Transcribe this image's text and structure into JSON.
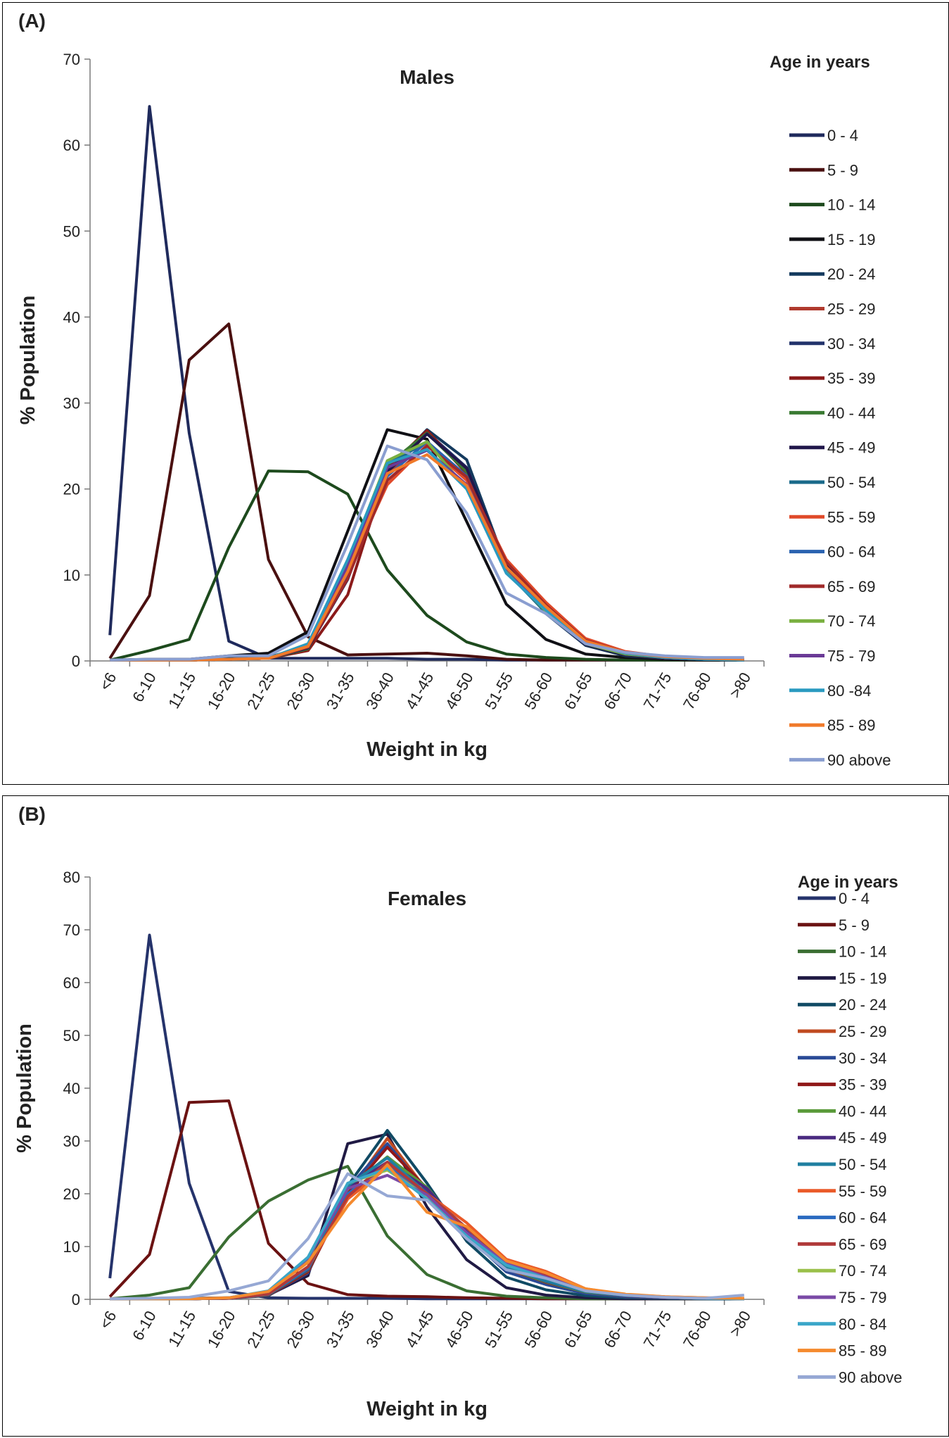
{
  "panels": [
    {
      "panel_label": "(A)",
      "chart_data": {
        "type": "line",
        "title": "Males",
        "xlabel": "Weight in kg",
        "ylabel": "% Population",
        "ylim": [
          0,
          70
        ],
        "yticks": [
          0,
          10,
          20,
          30,
          40,
          50,
          60,
          70
        ],
        "categories": [
          "<6",
          "6-10",
          "11-15",
          "16-20",
          "21-25",
          "26-30",
          "31-35",
          "36-40",
          "41-45",
          "46-50",
          "51-55",
          "56-60",
          "61-65",
          "66-70",
          "71-75",
          "76-80",
          ">80"
        ],
        "legend_title": "Age in years",
        "series": [
          {
            "name": "0 - 4",
            "color": "#1f2a5c",
            "values": [
              3,
              64.5,
              26.5,
              2.3,
              0.3,
              0.3,
              0.3,
              0.3,
              0.2,
              0.2,
              0.1,
              0.1,
              0.1,
              0.1,
              0.1,
              0.1,
              0.1
            ]
          },
          {
            "name": "5 - 9",
            "color": "#4a1010",
            "values": [
              0.3,
              7.6,
              35,
              39.2,
              11.8,
              2.8,
              0.7,
              0.8,
              0.9,
              0.6,
              0.2,
              0.1,
              0.1,
              0.1,
              0.1,
              0.1,
              0.1
            ]
          },
          {
            "name": "10 - 14",
            "color": "#1d4a1d",
            "values": [
              0.1,
              1.2,
              2.5,
              13.2,
              22.1,
              22,
              19.4,
              10.6,
              5.3,
              2.2,
              0.8,
              0.4,
              0.2,
              0.1,
              0.1,
              0.1,
              0.1
            ]
          },
          {
            "name": "15 - 19",
            "color": "#101015",
            "values": [
              0.1,
              0.2,
              0.2,
              0.6,
              0.9,
              3.4,
              15.1,
              26.9,
              25.8,
              16.2,
              6.6,
              2.5,
              0.8,
              0.4,
              0.2,
              0.1,
              0.1
            ]
          },
          {
            "name": "20 - 24",
            "color": "#143a5e",
            "values": [
              0.1,
              0.1,
              0.1,
              0.3,
              0.4,
              1.8,
              11.5,
              22.1,
              26.9,
              23.4,
              11,
              5.5,
              1.8,
              0.6,
              0.3,
              0.2,
              0.1
            ]
          },
          {
            "name": "25 - 29",
            "color": "#b03a2e",
            "values": [
              0.1,
              0.1,
              0.1,
              0.2,
              0.3,
              1.6,
              10.5,
              21.5,
              26.5,
              22.1,
              11.2,
              6,
              2,
              0.8,
              0.3,
              0.2,
              0.1
            ]
          },
          {
            "name": "30 - 34",
            "color": "#22336b",
            "values": [
              0.1,
              0.1,
              0.1,
              0.2,
              0.3,
              1.5,
              9.8,
              22,
              26.6,
              22.5,
              11,
              5.6,
              1.9,
              0.8,
              0.3,
              0.2,
              0.1
            ]
          },
          {
            "name": "35 - 39",
            "color": "#8b1a1a",
            "values": [
              0.1,
              0.1,
              0.1,
              0.2,
              0.3,
              1.2,
              7.7,
              22.4,
              26.8,
              21.8,
              11.1,
              5.8,
              2,
              0.7,
              0.3,
              0.2,
              0.1
            ]
          },
          {
            "name": "40 - 44",
            "color": "#3a7a32",
            "values": [
              0.1,
              0.1,
              0.1,
              0.2,
              0.3,
              1.4,
              10,
              22.8,
              26.5,
              22,
              10.8,
              5.7,
              1.9,
              0.7,
              0.3,
              0.2,
              0.1
            ]
          },
          {
            "name": "45 - 49",
            "color": "#20164a",
            "values": [
              0.1,
              0.1,
              0.1,
              0.2,
              0.3,
              1.5,
              9.5,
              22,
              26.4,
              22.4,
              11.1,
              5.6,
              1.9,
              0.7,
              0.3,
              0.2,
              0.1
            ]
          },
          {
            "name": "50 - 54",
            "color": "#1a6a8a",
            "values": [
              0.1,
              0.1,
              0.1,
              0.2,
              0.3,
              1.7,
              11,
              23,
              25.4,
              21.2,
              10.4,
              5.6,
              2,
              0.8,
              0.4,
              0.2,
              0.1
            ]
          },
          {
            "name": "55 - 59",
            "color": "#e04a2a",
            "values": [
              0.1,
              0.1,
              0.1,
              0.2,
              0.3,
              1.8,
              10.5,
              20.5,
              25.1,
              21,
              11.8,
              6.8,
              2.6,
              1.1,
              0.5,
              0.3,
              0.2
            ]
          },
          {
            "name": "60 - 64",
            "color": "#2a62b0",
            "values": [
              0.1,
              0.1,
              0.1,
              0.2,
              0.3,
              1.6,
              10.2,
              21.5,
              25.5,
              21.5,
              10.8,
              6.2,
              2.2,
              0.9,
              0.4,
              0.2,
              0.1
            ]
          },
          {
            "name": "65 - 69",
            "color": "#a02a2a",
            "values": [
              0.1,
              0.1,
              0.1,
              0.2,
              0.3,
              1.6,
              9.6,
              21,
              25,
              21.4,
              11.5,
              6.5,
              2.4,
              1,
              0.4,
              0.2,
              0.1
            ]
          },
          {
            "name": "70 - 74",
            "color": "#7ab040",
            "values": [
              0.1,
              0.1,
              0.1,
              0.2,
              0.3,
              2,
              11.5,
              23.3,
              25.5,
              20,
              10.4,
              5.8,
              2,
              0.8,
              0.4,
              0.2,
              0.1
            ]
          },
          {
            "name": "75 - 79",
            "color": "#6a3a96",
            "values": [
              0.1,
              0.1,
              0.1,
              0.2,
              0.3,
              1.9,
              11,
              22.5,
              24.5,
              20.5,
              10.8,
              6,
              2.2,
              0.9,
              0.4,
              0.2,
              0.1
            ]
          },
          {
            "name": "80 -84",
            "color": "#2a9ac0",
            "values": [
              0.1,
              0.1,
              0.1,
              0.2,
              0.3,
              2,
              11.8,
              23,
              24.6,
              20,
              10.2,
              5.9,
              2.2,
              0.9,
              0.4,
              0.2,
              0.1
            ]
          },
          {
            "name": "85 - 89",
            "color": "#f07a2a",
            "values": [
              0.1,
              0.1,
              0.1,
              0.2,
              0.3,
              1.7,
              10.4,
              21.8,
              24,
              20.4,
              10.9,
              6.3,
              2.3,
              1,
              0.5,
              0.3,
              0.2
            ]
          },
          {
            "name": "90 above",
            "color": "#8a9ed0",
            "values": [
              0.1,
              0.2,
              0.2,
              0.6,
              0.6,
              3,
              13.6,
              25,
              23.4,
              17.2,
              7.9,
              5.5,
              2,
              1,
              0.6,
              0.4,
              0.4
            ]
          }
        ]
      }
    },
    {
      "panel_label": "(B)",
      "chart_data": {
        "type": "line",
        "title": "Females",
        "xlabel": "Weight in kg",
        "ylabel": "% Population",
        "ylim": [
          0,
          80
        ],
        "yticks": [
          0,
          10,
          20,
          30,
          40,
          50,
          60,
          70,
          80
        ],
        "categories": [
          "<6",
          "6-10",
          "11-15",
          "16-20",
          "21-25",
          "26-30",
          "31-35",
          "36-40",
          "41-45",
          "46-50",
          "51-55",
          "56-60",
          "61-65",
          "66-70",
          "71-75",
          "76-80",
          ">80"
        ],
        "legend_title": "Age in years",
        "series": [
          {
            "name": "0 - 4",
            "color": "#25336b",
            "values": [
              4,
              69,
              22,
              1.5,
              0.3,
              0.2,
              0.2,
              0.2,
              0.1,
              0.1,
              0.1,
              0.1,
              0.1,
              0.1,
              0.1,
              0.1,
              0.1
            ]
          },
          {
            "name": "5 - 9",
            "color": "#6b1212",
            "values": [
              0.5,
              8.5,
              37.3,
              37.6,
              10.6,
              3,
              0.9,
              0.6,
              0.5,
              0.3,
              0.2,
              0.1,
              0.1,
              0.1,
              0.1,
              0.1,
              0.1
            ]
          },
          {
            "name": "10 - 14",
            "color": "#3a6e32",
            "values": [
              0.1,
              0.8,
              2.2,
              11.8,
              18.6,
              22.6,
              25.2,
              12,
              4.7,
              1.6,
              0.6,
              0.3,
              0.1,
              0.1,
              0.1,
              0.1,
              0.1
            ]
          },
          {
            "name": "15 - 19",
            "color": "#201a44",
            "values": [
              0.1,
              0.1,
              0.2,
              0.3,
              0.8,
              4.5,
              29.5,
              31.3,
              17.5,
              7.5,
              2.2,
              0.8,
              0.3,
              0.1,
              0.1,
              0.1,
              0.1
            ]
          },
          {
            "name": "20 - 24",
            "color": "#104a64",
            "values": [
              0.1,
              0.1,
              0.1,
              0.2,
              0.7,
              5.3,
              21.5,
              32,
              22,
              11,
              4.2,
              1.8,
              0.7,
              0.3,
              0.2,
              0.1,
              0.1
            ]
          },
          {
            "name": "25 - 29",
            "color": "#c04a20",
            "values": [
              0.1,
              0.1,
              0.1,
              0.2,
              0.8,
              5.5,
              20,
              30.5,
              20.6,
              12.5,
              5.6,
              3,
              1.2,
              0.5,
              0.3,
              0.2,
              0.1
            ]
          },
          {
            "name": "30 - 34",
            "color": "#2a4a96",
            "values": [
              0.1,
              0.1,
              0.1,
              0.2,
              0.8,
              5,
              21,
              29.5,
              20.5,
              12,
              5.2,
              2.8,
              1.1,
              0.5,
              0.3,
              0.2,
              0.1
            ]
          },
          {
            "name": "35 - 39",
            "color": "#901818",
            "values": [
              0.1,
              0.1,
              0.1,
              0.2,
              0.8,
              5.2,
              20,
              28.8,
              21,
              12.5,
              6,
              3.2,
              1.4,
              0.6,
              0.3,
              0.2,
              0.1
            ]
          },
          {
            "name": "40 - 44",
            "color": "#5a9a3a",
            "values": [
              0.1,
              0.1,
              0.1,
              0.2,
              0.9,
              5.5,
              21,
              27,
              21.2,
              12.5,
              6,
              3.3,
              1.4,
              0.6,
              0.3,
              0.2,
              0.1
            ]
          },
          {
            "name": "45 - 49",
            "color": "#4a2a80",
            "values": [
              0.1,
              0.1,
              0.1,
              0.2,
              0.9,
              5.6,
              21.2,
              26,
              21,
              12.8,
              6.2,
              3.4,
              1.5,
              0.6,
              0.3,
              0.2,
              0.1
            ]
          },
          {
            "name": "50 - 54",
            "color": "#1f7fa0",
            "values": [
              0.1,
              0.1,
              0.1,
              0.2,
              0.9,
              5.8,
              21.5,
              26.8,
              20,
              12.5,
              6,
              3.5,
              1.5,
              0.7,
              0.4,
              0.2,
              0.1
            ]
          },
          {
            "name": "55 - 59",
            "color": "#ea5a28",
            "values": [
              0.1,
              0.1,
              0.1,
              0.2,
              1,
              6,
              19,
              25,
              20,
              14.5,
              7.6,
              5.3,
              2,
              0.9,
              0.5,
              0.3,
              0.2
            ]
          },
          {
            "name": "60 - 64",
            "color": "#2a6ac0",
            "values": [
              0.1,
              0.1,
              0.1,
              0.2,
              1,
              6,
              20,
              25.5,
              20,
              13.5,
              7,
              4.5,
              1.8,
              0.8,
              0.4,
              0.2,
              0.1
            ]
          },
          {
            "name": "65 - 69",
            "color": "#b03a3a",
            "values": [
              0.1,
              0.1,
              0.1,
              0.2,
              1,
              6.2,
              19.5,
              26,
              20,
              13.5,
              7.2,
              4.6,
              1.9,
              0.8,
              0.4,
              0.2,
              0.1
            ]
          },
          {
            "name": "70 - 74",
            "color": "#9ac04a",
            "values": [
              0.1,
              0.1,
              0.1,
              0.3,
              1.5,
              7.5,
              22,
              24.5,
              19.5,
              12.5,
              6.5,
              4,
              1.7,
              0.8,
              0.4,
              0.2,
              0.1
            ]
          },
          {
            "name": "75 - 79",
            "color": "#7a4aa6",
            "values": [
              0.1,
              0.1,
              0.1,
              0.3,
              1.5,
              7.8,
              21,
              23.5,
              19.8,
              12.6,
              6.8,
              4.2,
              1.8,
              0.8,
              0.4,
              0.2,
              0.1
            ]
          },
          {
            "name": "80 - 84",
            "color": "#3aa6c8",
            "values": [
              0.1,
              0.1,
              0.1,
              0.3,
              1.6,
              8,
              22,
              24.8,
              19,
              12,
              6.5,
              4,
              1.6,
              0.8,
              0.4,
              0.2,
              0.1
            ]
          },
          {
            "name": "85 - 89",
            "color": "#f58a2e",
            "values": [
              0.1,
              0.1,
              0.1,
              0.3,
              1.5,
              7,
              17.7,
              25.5,
              16.5,
              13.8,
              7.3,
              5,
              2,
              1,
              0.5,
              0.3,
              0.2
            ]
          },
          {
            "name": "90 above",
            "color": "#96a8d4",
            "values": [
              0.1,
              0.2,
              0.4,
              1.6,
              3.5,
              11.5,
              23.8,
              19.6,
              18.8,
              11.5,
              5.6,
              4,
              1.6,
              0.8,
              0.4,
              0.2,
              0.8
            ]
          }
        ]
      }
    }
  ]
}
